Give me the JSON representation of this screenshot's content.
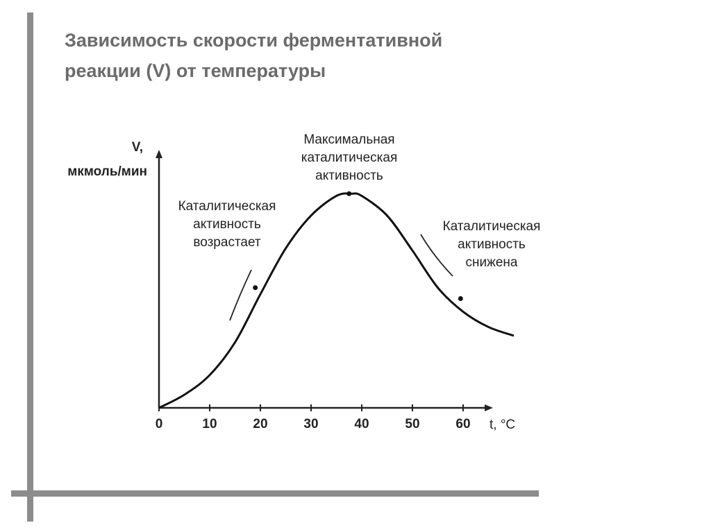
{
  "title_lines": [
    "Зависимость скорости ферментативной",
    "реакции (V) от температуры"
  ],
  "chart_data": {
    "type": "line",
    "ylabel_lines": [
      "V,",
      "мкмоль/мин"
    ],
    "xlabel": "t, °C",
    "x_ticks": [
      0,
      10,
      20,
      30,
      40,
      50,
      60
    ],
    "xlim": [
      0,
      65
    ],
    "ylim": [
      0,
      1.1
    ],
    "series": [
      {
        "x": [
          0,
          5,
          10,
          15,
          20,
          25,
          30,
          35,
          38,
          40,
          45,
          50,
          55,
          60,
          65,
          70
        ],
        "y": [
          0,
          0.06,
          0.15,
          0.3,
          0.52,
          0.73,
          0.88,
          0.97,
          0.98,
          0.97,
          0.88,
          0.72,
          0.55,
          0.44,
          0.37,
          0.33
        ]
      }
    ],
    "annotations": [
      {
        "lines": [
          "Каталитическая",
          "активность",
          "возрастает"
        ],
        "x": 19,
        "y": 0.55
      },
      {
        "lines": [
          "Максимальная",
          "каталитическая",
          "активность"
        ],
        "x": 37.5,
        "y": 0.98
      },
      {
        "lines": [
          "Каталитическая",
          "активность",
          "снижена"
        ],
        "x": 59.5,
        "y": 0.5
      }
    ],
    "grid": false,
    "colors": {
      "line": "#111111",
      "axis": "#222222"
    }
  }
}
